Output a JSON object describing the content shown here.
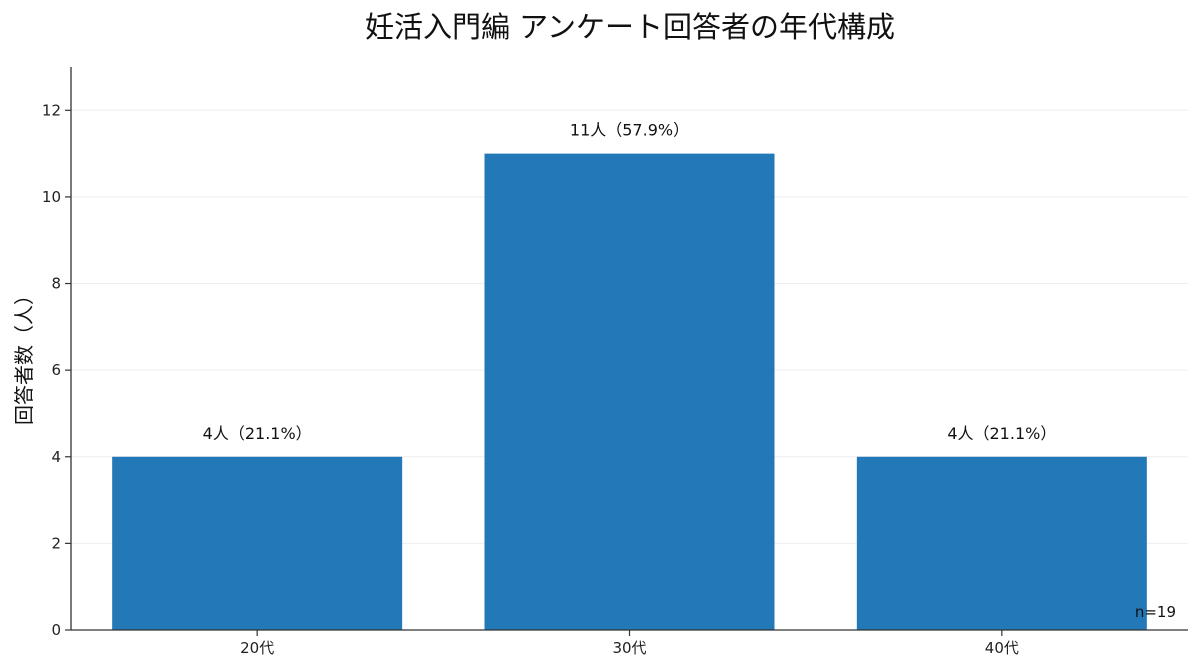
{
  "chart_data": {
    "type": "bar",
    "title": "妊活入門編 アンケート回答者の年代構成",
    "xlabel": "",
    "ylabel": "回答者数（人）",
    "categories": [
      "20代",
      "30代",
      "40代"
    ],
    "values": [
      4,
      11,
      4
    ],
    "data_labels": [
      "4人（21.1%）",
      "11人（57.9%）",
      "4人（21.1%）"
    ],
    "ylim": [
      0,
      13
    ],
    "yticks": [
      0,
      2,
      4,
      6,
      8,
      10,
      12
    ],
    "grid": true,
    "bar_color": "#2378b8",
    "annotation": "n=19"
  }
}
